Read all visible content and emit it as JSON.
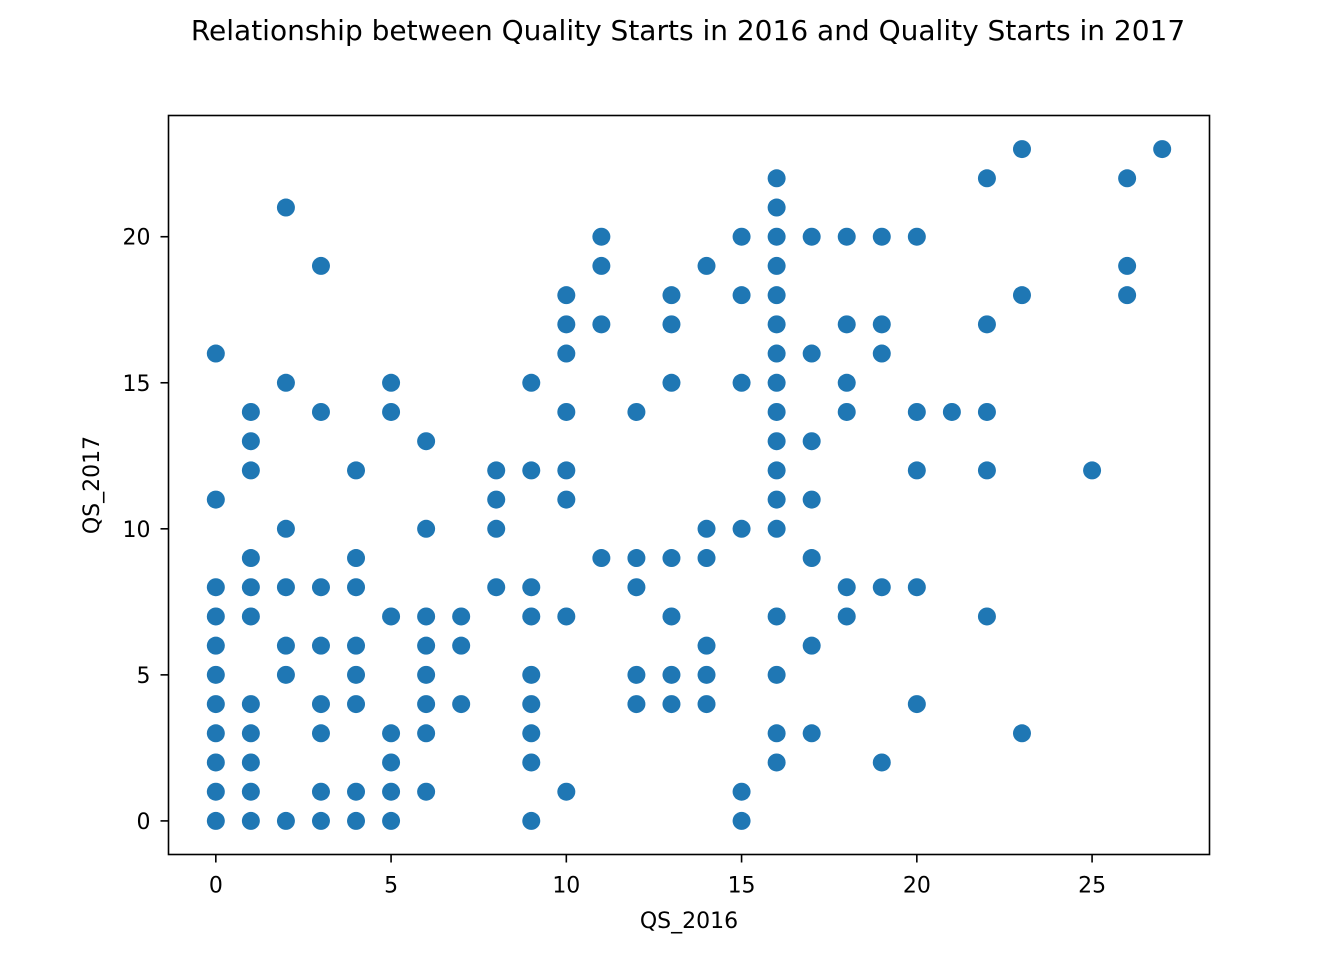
{
  "chart_data": {
    "type": "scatter",
    "title": "Relationship between Quality Starts in 2016 and Quality Starts in 2017",
    "xlabel": "QS_2016",
    "ylabel": "QS_2017",
    "xlim": [
      -1.35,
      28.35
    ],
    "ylim": [
      -1.15,
      24.15
    ],
    "xticks": [
      0,
      5,
      10,
      15,
      20,
      25
    ],
    "yticks": [
      0,
      5,
      10,
      15,
      20
    ],
    "grid": false,
    "legend": "none",
    "marker_color": "#1f77b4",
    "points": [
      [
        0,
        0
      ],
      [
        0,
        1
      ],
      [
        0,
        2
      ],
      [
        0,
        3
      ],
      [
        0,
        4
      ],
      [
        0,
        5
      ],
      [
        0,
        6
      ],
      [
        0,
        7
      ],
      [
        0,
        8
      ],
      [
        0,
        11
      ],
      [
        0,
        16
      ],
      [
        1,
        0
      ],
      [
        1,
        1
      ],
      [
        1,
        2
      ],
      [
        1,
        3
      ],
      [
        1,
        4
      ],
      [
        1,
        7
      ],
      [
        1,
        8
      ],
      [
        1,
        9
      ],
      [
        1,
        12
      ],
      [
        1,
        13
      ],
      [
        1,
        14
      ],
      [
        2,
        0
      ],
      [
        2,
        5
      ],
      [
        2,
        6
      ],
      [
        2,
        8
      ],
      [
        2,
        10
      ],
      [
        2,
        15
      ],
      [
        2,
        21
      ],
      [
        3,
        0
      ],
      [
        3,
        1
      ],
      [
        3,
        3
      ],
      [
        3,
        4
      ],
      [
        3,
        6
      ],
      [
        3,
        8
      ],
      [
        3,
        14
      ],
      [
        3,
        19
      ],
      [
        4,
        0
      ],
      [
        4,
        1
      ],
      [
        4,
        4
      ],
      [
        4,
        5
      ],
      [
        4,
        6
      ],
      [
        4,
        8
      ],
      [
        4,
        9
      ],
      [
        4,
        12
      ],
      [
        5,
        0
      ],
      [
        5,
        1
      ],
      [
        5,
        2
      ],
      [
        5,
        3
      ],
      [
        5,
        7
      ],
      [
        5,
        14
      ],
      [
        5,
        15
      ],
      [
        6,
        1
      ],
      [
        6,
        3
      ],
      [
        6,
        4
      ],
      [
        6,
        5
      ],
      [
        6,
        6
      ],
      [
        6,
        7
      ],
      [
        6,
        10
      ],
      [
        6,
        13
      ],
      [
        7,
        4
      ],
      [
        7,
        6
      ],
      [
        7,
        7
      ],
      [
        8,
        8
      ],
      [
        8,
        10
      ],
      [
        8,
        11
      ],
      [
        8,
        12
      ],
      [
        9,
        0
      ],
      [
        9,
        2
      ],
      [
        9,
        3
      ],
      [
        9,
        4
      ],
      [
        9,
        5
      ],
      [
        9,
        7
      ],
      [
        9,
        8
      ],
      [
        9,
        12
      ],
      [
        9,
        15
      ],
      [
        10,
        1
      ],
      [
        10,
        7
      ],
      [
        10,
        11
      ],
      [
        10,
        12
      ],
      [
        10,
        14
      ],
      [
        10,
        16
      ],
      [
        10,
        17
      ],
      [
        10,
        18
      ],
      [
        11,
        9
      ],
      [
        11,
        17
      ],
      [
        11,
        19
      ],
      [
        11,
        20
      ],
      [
        12,
        4
      ],
      [
        12,
        5
      ],
      [
        12,
        8
      ],
      [
        12,
        9
      ],
      [
        12,
        14
      ],
      [
        13,
        4
      ],
      [
        13,
        5
      ],
      [
        13,
        7
      ],
      [
        13,
        9
      ],
      [
        13,
        15
      ],
      [
        13,
        17
      ],
      [
        13,
        18
      ],
      [
        14,
        4
      ],
      [
        14,
        5
      ],
      [
        14,
        6
      ],
      [
        14,
        9
      ],
      [
        14,
        10
      ],
      [
        14,
        19
      ],
      [
        15,
        0
      ],
      [
        15,
        1
      ],
      [
        15,
        10
      ],
      [
        15,
        15
      ],
      [
        15,
        18
      ],
      [
        15,
        20
      ],
      [
        16,
        2
      ],
      [
        16,
        3
      ],
      [
        16,
        5
      ],
      [
        16,
        7
      ],
      [
        16,
        10
      ],
      [
        16,
        11
      ],
      [
        16,
        12
      ],
      [
        16,
        13
      ],
      [
        16,
        14
      ],
      [
        16,
        15
      ],
      [
        16,
        16
      ],
      [
        16,
        17
      ],
      [
        16,
        18
      ],
      [
        16,
        19
      ],
      [
        16,
        20
      ],
      [
        16,
        21
      ],
      [
        16,
        22
      ],
      [
        17,
        3
      ],
      [
        17,
        6
      ],
      [
        17,
        9
      ],
      [
        17,
        11
      ],
      [
        17,
        13
      ],
      [
        17,
        16
      ],
      [
        17,
        20
      ],
      [
        18,
        7
      ],
      [
        18,
        8
      ],
      [
        18,
        14
      ],
      [
        18,
        15
      ],
      [
        18,
        17
      ],
      [
        18,
        20
      ],
      [
        19,
        2
      ],
      [
        19,
        8
      ],
      [
        19,
        16
      ],
      [
        19,
        17
      ],
      [
        19,
        20
      ],
      [
        20,
        4
      ],
      [
        20,
        8
      ],
      [
        20,
        12
      ],
      [
        20,
        14
      ],
      [
        20,
        20
      ],
      [
        21,
        14
      ],
      [
        22,
        7
      ],
      [
        22,
        12
      ],
      [
        22,
        14
      ],
      [
        22,
        17
      ],
      [
        22,
        22
      ],
      [
        23,
        3
      ],
      [
        23,
        18
      ],
      [
        23,
        23
      ],
      [
        25,
        12
      ],
      [
        26,
        18
      ],
      [
        26,
        19
      ],
      [
        26,
        22
      ],
      [
        27,
        23
      ]
    ]
  }
}
